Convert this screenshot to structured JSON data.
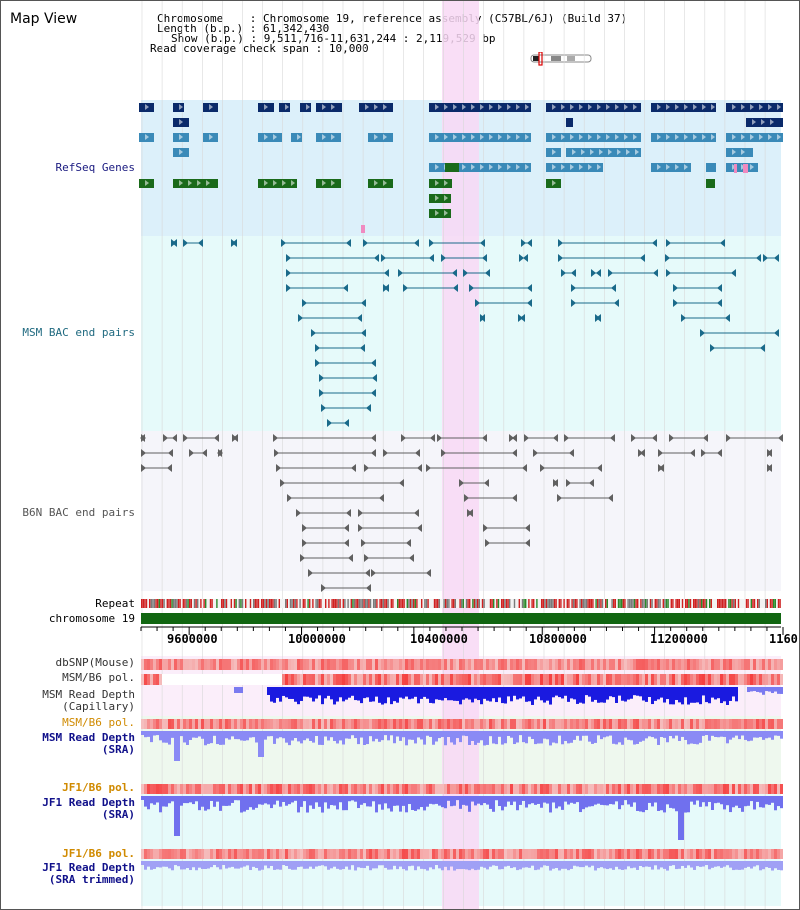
{
  "title": "Map View",
  "info": {
    "chromosome_label": "Chromosome",
    "chromosome_value": "Chromosome 19, reference assembly (C57BL/6J) (Build 37)",
    "length_label": "Length (b.p.)",
    "length_value": "61,342,430",
    "show_label": "Show (b.p.)",
    "show_value": "9,511,716-11,631,244 : 2,119,529 bp",
    "coverage_label": "Read coverage check span",
    "coverage_value": "10,000",
    "sep": ":"
  },
  "tracks": {
    "refseq": "RefSeq Genes",
    "msm_bac": "MSM BAC end pairs",
    "b6n_bac": "B6N BAC end pairs",
    "repeat": "Repeat",
    "chromosome": "chromosome 19",
    "dbsnp": "dbSNP(Mouse)",
    "msm_b6_pol_1": "MSM/B6 pol.",
    "msm_read_depth_cap_1": "MSM Read Depth",
    "msm_read_depth_cap_2": "(Capillary)",
    "msm_b6_pol_2": "MSM/B6 pol.",
    "msm_read_depth_sra_1": "MSM Read Depth",
    "msm_read_depth_sra_2": "(SRA)",
    "jf1_b6_pol_1": "JF1/B6 pol.",
    "jf1_read_depth_sra_1": "JF1 Read Depth",
    "jf1_read_depth_sra_2": "(SRA)",
    "jf1_b6_pol_2": "JF1/B6 pol.",
    "jf1_read_depth_trim_1": "JF1 Read Depth",
    "jf1_read_depth_trim_2": "(SRA trimmed)"
  },
  "axis": {
    "ticks": [
      "9600000",
      "10000000",
      "10400000",
      "10800000",
      "11200000",
      "1160"
    ]
  },
  "colors": {
    "refseq_bg": "#dcf0fa",
    "msm_bg": "#e6fafa",
    "b6n_bg": "#f5f5fa",
    "highlight": "#f8d8f4",
    "navy_gene": "#0a2a6a",
    "teal_gene": "#3a8ab8",
    "green_gene": "#1a6a1a",
    "msm_bac": "#1a6a8a",
    "b6n_bac": "#606060",
    "chromosome_bar": "#116611",
    "label_navy": "#1a1a80",
    "label_teal": "#206a80",
    "label_orange": "#d08a00",
    "label_blue": "#10108a"
  }
}
